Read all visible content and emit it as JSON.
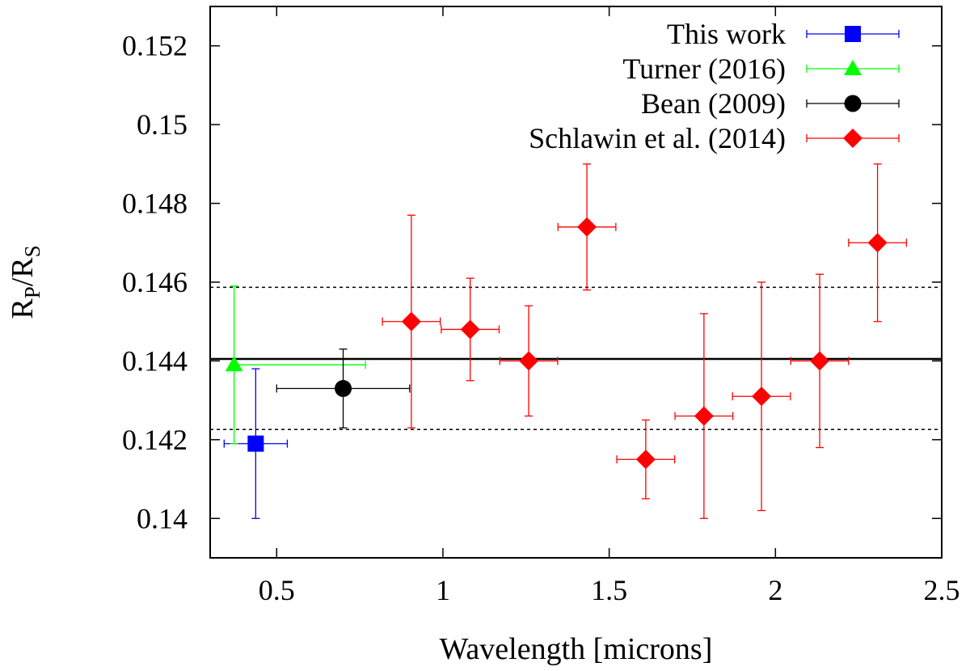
{
  "chart_data": {
    "type": "scatter",
    "title": "",
    "xlabel": "Wavelength [microns]",
    "ylabel": {
      "main": "R",
      "sub1": "P",
      "sep": "/R",
      "sub2": "S"
    },
    "xlim": [
      0.3,
      2.5
    ],
    "ylim": [
      0.139,
      0.153
    ],
    "xticks": [
      0.5,
      1,
      1.5,
      2,
      2.5
    ],
    "xtick_labels": [
      "0.5",
      "1",
      "1.5",
      "2",
      "2.5"
    ],
    "yticks": [
      0.14,
      0.142,
      0.144,
      0.146,
      0.148,
      0.15,
      0.152
    ],
    "ytick_labels": [
      "0.14",
      "0.142",
      "0.144",
      "0.146",
      "0.148",
      "0.15",
      "0.152"
    ],
    "grid": false,
    "legend_position": "top-right",
    "reference_lines": [
      {
        "y": 0.14405,
        "style": "solid",
        "color": "#000000"
      },
      {
        "y": 0.14587,
        "style": "dashed",
        "color": "#000000"
      },
      {
        "y": 0.14226,
        "style": "dashed",
        "color": "#000000"
      }
    ],
    "series": [
      {
        "name": "This work",
        "color": "#0000ff",
        "marker": "square",
        "points": [
          {
            "x": 0.437,
            "y": 0.1419,
            "xerr": 0.095,
            "yerr_low": 0.0019,
            "yerr_high": 0.0019
          }
        ]
      },
      {
        "name": "Turner (2016)",
        "color": "#00ff00",
        "marker": "triangle",
        "points": [
          {
            "x": 0.372,
            "y": 0.1439,
            "xerr_low": 0.0,
            "xerr_high": 0.395,
            "yerr_low": 0.002,
            "yerr_high": 0.002
          }
        ]
      },
      {
        "name": "Bean (2009)",
        "color": "#000000",
        "marker": "circle",
        "points": [
          {
            "x": 0.7,
            "y": 0.1433,
            "xerr": 0.2,
            "yerr_low": 0.001,
            "yerr_high": 0.001
          }
        ]
      },
      {
        "name": "Schlawin et al. (2014)",
        "color": "#ff0000",
        "marker": "diamond",
        "points": [
          {
            "x": 0.905,
            "y": 0.145,
            "xerr": 0.087,
            "yerr_low": 0.0027,
            "yerr_high": 0.0027
          },
          {
            "x": 1.082,
            "y": 0.1448,
            "xerr": 0.087,
            "yerr_low": 0.0013,
            "yerr_high": 0.0013
          },
          {
            "x": 1.258,
            "y": 0.144,
            "xerr": 0.087,
            "yerr_low": 0.0014,
            "yerr_high": 0.0014
          },
          {
            "x": 1.433,
            "y": 0.1474,
            "xerr": 0.087,
            "yerr_low": 0.0016,
            "yerr_high": 0.0016
          },
          {
            "x": 1.61,
            "y": 0.1415,
            "xerr": 0.087,
            "yerr_low": 0.001,
            "yerr_high": 0.001
          },
          {
            "x": 1.785,
            "y": 0.1426,
            "xerr": 0.087,
            "yerr_low": 0.0026,
            "yerr_high": 0.0026
          },
          {
            "x": 1.958,
            "y": 0.1431,
            "xerr": 0.087,
            "yerr_low": 0.0029,
            "yerr_high": 0.0029
          },
          {
            "x": 2.133,
            "y": 0.144,
            "xerr": 0.087,
            "yerr_low": 0.0022,
            "yerr_high": 0.0022
          },
          {
            "x": 2.307,
            "y": 0.147,
            "xerr": 0.087,
            "yerr_low": 0.002,
            "yerr_high": 0.002
          }
        ]
      }
    ]
  }
}
